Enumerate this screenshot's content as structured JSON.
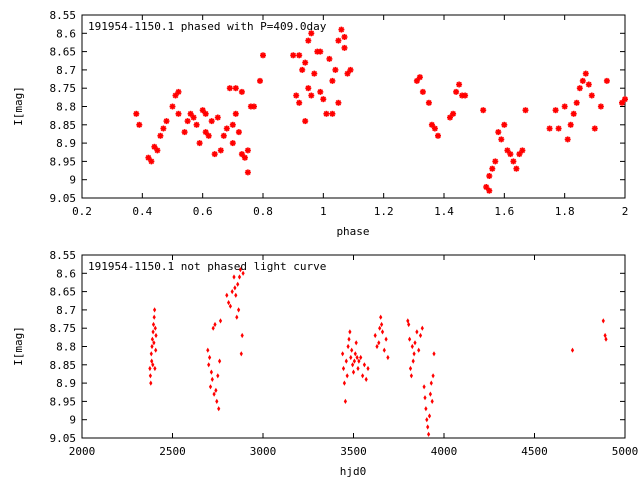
{
  "chart_data": [
    {
      "type": "scatter",
      "title": "191954-1150.1 phased with P=409.0day",
      "xlabel": "phase",
      "ylabel": "I[mag]",
      "xlim": [
        0.2,
        2.0
      ],
      "ylim": [
        9.05,
        8.55
      ],
      "y_inverted": true,
      "x_ticks": [
        "0.2",
        "0.4",
        "0.6",
        "0.8",
        "1",
        "1.2",
        "1.4",
        "1.6",
        "1.8",
        "2"
      ],
      "x_tick_values": [
        0.2,
        0.4,
        0.6,
        0.8,
        1.0,
        1.2,
        1.4,
        1.6,
        1.8,
        2.0
      ],
      "y_ticks": [
        "8.55",
        "8.6",
        "8.65",
        "8.7",
        "8.75",
        "8.8",
        "8.85",
        "8.9",
        "8.95",
        "9",
        "9.05"
      ],
      "y_tick_values": [
        8.55,
        8.6,
        8.65,
        8.7,
        8.75,
        8.8,
        8.85,
        8.9,
        8.95,
        9.0,
        9.05
      ],
      "marker": "star",
      "color": "#ff0000",
      "points": [
        [
          0.38,
          8.82
        ],
        [
          0.39,
          8.85
        ],
        [
          0.42,
          8.94
        ],
        [
          0.43,
          8.95
        ],
        [
          0.44,
          8.91
        ],
        [
          0.45,
          8.92
        ],
        [
          0.46,
          8.88
        ],
        [
          0.47,
          8.86
        ],
        [
          0.48,
          8.84
        ],
        [
          0.5,
          8.8
        ],
        [
          0.51,
          8.77
        ],
        [
          0.52,
          8.76
        ],
        [
          0.52,
          8.82
        ],
        [
          0.54,
          8.87
        ],
        [
          0.55,
          8.84
        ],
        [
          0.56,
          8.82
        ],
        [
          0.57,
          8.83
        ],
        [
          0.58,
          8.85
        ],
        [
          0.59,
          8.9
        ],
        [
          0.6,
          8.81
        ],
        [
          0.61,
          8.82
        ],
        [
          0.61,
          8.87
        ],
        [
          0.62,
          8.88
        ],
        [
          0.63,
          8.84
        ],
        [
          0.64,
          8.93
        ],
        [
          0.65,
          8.83
        ],
        [
          0.66,
          8.92
        ],
        [
          0.67,
          8.88
        ],
        [
          0.68,
          8.86
        ],
        [
          0.69,
          8.75
        ],
        [
          0.7,
          8.85
        ],
        [
          0.7,
          8.9
        ],
        [
          0.71,
          8.82
        ],
        [
          0.71,
          8.75
        ],
        [
          0.72,
          8.87
        ],
        [
          0.73,
          8.76
        ],
        [
          0.73,
          8.93
        ],
        [
          0.74,
          8.94
        ],
        [
          0.75,
          8.98
        ],
        [
          0.75,
          8.92
        ],
        [
          0.76,
          8.8
        ],
        [
          0.77,
          8.8
        ],
        [
          0.79,
          8.73
        ],
        [
          0.8,
          8.66
        ],
        [
          0.9,
          8.66
        ],
        [
          0.91,
          8.77
        ],
        [
          0.92,
          8.66
        ],
        [
          0.92,
          8.79
        ],
        [
          0.93,
          8.7
        ],
        [
          0.94,
          8.84
        ],
        [
          0.94,
          8.68
        ],
        [
          0.95,
          8.62
        ],
        [
          0.95,
          8.75
        ],
        [
          0.96,
          8.6
        ],
        [
          0.96,
          8.77
        ],
        [
          0.97,
          8.71
        ],
        [
          0.98,
          8.65
        ],
        [
          0.99,
          8.65
        ],
        [
          0.99,
          8.76
        ],
        [
          1.0,
          8.78
        ],
        [
          1.01,
          8.82
        ],
        [
          1.02,
          8.67
        ],
        [
          1.03,
          8.73
        ],
        [
          1.03,
          8.82
        ],
        [
          1.04,
          8.7
        ],
        [
          1.05,
          8.62
        ],
        [
          1.05,
          8.79
        ],
        [
          1.06,
          8.59
        ],
        [
          1.07,
          8.61
        ],
        [
          1.07,
          8.64
        ],
        [
          1.08,
          8.71
        ],
        [
          1.09,
          8.7
        ],
        [
          1.31,
          8.73
        ],
        [
          1.32,
          8.72
        ],
        [
          1.33,
          8.76
        ],
        [
          1.35,
          8.79
        ],
        [
          1.36,
          8.85
        ],
        [
          1.37,
          8.86
        ],
        [
          1.38,
          8.88
        ],
        [
          1.42,
          8.83
        ],
        [
          1.43,
          8.82
        ],
        [
          1.44,
          8.76
        ],
        [
          1.45,
          8.74
        ],
        [
          1.46,
          8.77
        ],
        [
          1.47,
          8.77
        ],
        [
          1.53,
          8.81
        ],
        [
          1.54,
          9.02
        ],
        [
          1.55,
          9.03
        ],
        [
          1.55,
          8.99
        ],
        [
          1.56,
          8.97
        ],
        [
          1.57,
          8.95
        ],
        [
          1.58,
          8.87
        ],
        [
          1.59,
          8.89
        ],
        [
          1.6,
          8.85
        ],
        [
          1.61,
          8.92
        ],
        [
          1.62,
          8.93
        ],
        [
          1.63,
          8.95
        ],
        [
          1.64,
          8.97
        ],
        [
          1.65,
          8.93
        ],
        [
          1.66,
          8.92
        ],
        [
          1.67,
          8.81
        ],
        [
          1.75,
          8.86
        ],
        [
          1.77,
          8.81
        ],
        [
          1.78,
          8.86
        ],
        [
          1.8,
          8.8
        ],
        [
          1.81,
          8.89
        ],
        [
          1.82,
          8.85
        ],
        [
          1.83,
          8.82
        ],
        [
          1.84,
          8.79
        ],
        [
          1.85,
          8.75
        ],
        [
          1.86,
          8.73
        ],
        [
          1.87,
          8.71
        ],
        [
          1.88,
          8.74
        ],
        [
          1.89,
          8.77
        ],
        [
          1.9,
          8.86
        ],
        [
          1.92,
          8.8
        ],
        [
          1.94,
          8.73
        ],
        [
          1.99,
          8.79
        ],
        [
          2.0,
          8.78
        ]
      ]
    },
    {
      "type": "scatter",
      "title": "191954-1150.1 not phased light curve",
      "xlabel": "hjd0",
      "ylabel": "I[mag]",
      "xlim": [
        2000,
        5000
      ],
      "ylim": [
        9.05,
        8.55
      ],
      "y_inverted": true,
      "x_ticks": [
        "2000",
        "2500",
        "3000",
        "3500",
        "4000",
        "4500",
        "5000"
      ],
      "x_tick_values": [
        2000,
        2500,
        3000,
        3500,
        4000,
        4500,
        5000
      ],
      "y_ticks": [
        "8.55",
        "8.6",
        "8.65",
        "8.7",
        "8.75",
        "8.8",
        "8.85",
        "8.9",
        "8.95",
        "9",
        "9.05"
      ],
      "y_tick_values": [
        8.55,
        8.6,
        8.65,
        8.7,
        8.75,
        8.8,
        8.85,
        8.9,
        8.95,
        9.0,
        9.05
      ],
      "marker": "diamond",
      "color": "#ff0000",
      "points": [
        [
          2375,
          8.86
        ],
        [
          2378,
          8.88
        ],
        [
          2380,
          8.9
        ],
        [
          2383,
          8.82
        ],
        [
          2385,
          8.84
        ],
        [
          2387,
          8.8
        ],
        [
          2389,
          8.78
        ],
        [
          2391,
          8.85
        ],
        [
          2393,
          8.76
        ],
        [
          2395,
          8.74
        ],
        [
          2397,
          8.79
        ],
        [
          2399,
          8.72
        ],
        [
          2401,
          8.7
        ],
        [
          2403,
          8.86
        ],
        [
          2405,
          8.75
        ],
        [
          2407,
          8.81
        ],
        [
          2409,
          8.77
        ],
        [
          2695,
          8.81
        ],
        [
          2700,
          8.85
        ],
        [
          2705,
          8.83
        ],
        [
          2710,
          8.91
        ],
        [
          2715,
          8.87
        ],
        [
          2720,
          8.89
        ],
        [
          2725,
          8.75
        ],
        [
          2730,
          8.93
        ],
        [
          2735,
          8.74
        ],
        [
          2740,
          8.92
        ],
        [
          2745,
          8.95
        ],
        [
          2750,
          8.88
        ],
        [
          2755,
          8.97
        ],
        [
          2760,
          8.84
        ],
        [
          2765,
          8.73
        ],
        [
          2800,
          8.66
        ],
        [
          2810,
          8.68
        ],
        [
          2820,
          8.69
        ],
        [
          2830,
          8.65
        ],
        [
          2840,
          8.61
        ],
        [
          2845,
          8.64
        ],
        [
          2850,
          8.66
        ],
        [
          2855,
          8.72
        ],
        [
          2860,
          8.63
        ],
        [
          2865,
          8.7
        ],
        [
          2870,
          8.61
        ],
        [
          2875,
          8.59
        ],
        [
          2880,
          8.82
        ],
        [
          2885,
          8.77
        ],
        [
          2890,
          8.6
        ],
        [
          3440,
          8.82
        ],
        [
          3445,
          8.86
        ],
        [
          3450,
          8.9
        ],
        [
          3455,
          8.95
        ],
        [
          3460,
          8.84
        ],
        [
          3465,
          8.88
        ],
        [
          3470,
          8.8
        ],
        [
          3475,
          8.78
        ],
        [
          3480,
          8.76
        ],
        [
          3485,
          8.83
        ],
        [
          3490,
          8.81
        ],
        [
          3495,
          8.85
        ],
        [
          3500,
          8.87
        ],
        [
          3505,
          8.84
        ],
        [
          3510,
          8.82
        ],
        [
          3515,
          8.79
        ],
        [
          3520,
          8.83
        ],
        [
          3525,
          8.86
        ],
        [
          3530,
          8.84
        ],
        [
          3540,
          8.83
        ],
        [
          3550,
          8.88
        ],
        [
          3560,
          8.85
        ],
        [
          3570,
          8.89
        ],
        [
          3580,
          8.86
        ],
        [
          3620,
          8.77
        ],
        [
          3630,
          8.8
        ],
        [
          3640,
          8.79
        ],
        [
          3645,
          8.75
        ],
        [
          3650,
          8.72
        ],
        [
          3655,
          8.74
        ],
        [
          3660,
          8.76
        ],
        [
          3670,
          8.81
        ],
        [
          3680,
          8.78
        ],
        [
          3690,
          8.83
        ],
        [
          3800,
          8.73
        ],
        [
          3805,
          8.74
        ],
        [
          3810,
          8.78
        ],
        [
          3815,
          8.86
        ],
        [
          3820,
          8.88
        ],
        [
          3825,
          8.8
        ],
        [
          3830,
          8.84
        ],
        [
          3835,
          8.82
        ],
        [
          3840,
          8.79
        ],
        [
          3850,
          8.76
        ],
        [
          3860,
          8.81
        ],
        [
          3870,
          8.77
        ],
        [
          3880,
          8.75
        ],
        [
          3890,
          8.91
        ],
        [
          3895,
          8.94
        ],
        [
          3900,
          8.97
        ],
        [
          3905,
          9.0
        ],
        [
          3910,
          9.02
        ],
        [
          3915,
          9.04
        ],
        [
          3920,
          8.99
        ],
        [
          3925,
          8.93
        ],
        [
          3930,
          8.9
        ],
        [
          3935,
          8.95
        ],
        [
          3940,
          8.88
        ],
        [
          3945,
          8.82
        ],
        [
          4710,
          8.81
        ],
        [
          4880,
          8.73
        ],
        [
          4890,
          8.77
        ],
        [
          4895,
          8.78
        ]
      ]
    }
  ]
}
